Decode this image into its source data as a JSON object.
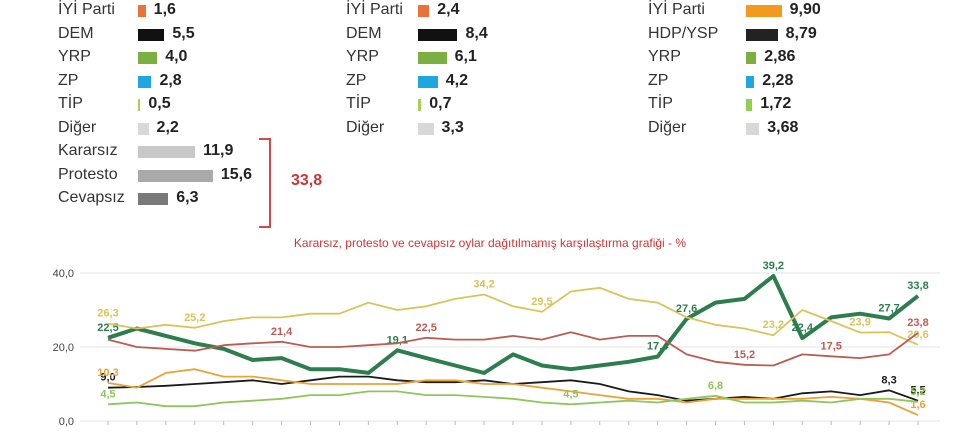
{
  "left_panel": {
    "rows": [
      {
        "label": "İYİ Parti",
        "value": "1,6",
        "color": "#e8743a"
      },
      {
        "label": "DEM",
        "value": "5,5",
        "color": "#111111"
      },
      {
        "label": "YRP",
        "value": "4,0",
        "color": "#7bb040"
      },
      {
        "label": "ZP",
        "value": "2,8",
        "color": "#1ea6e0"
      },
      {
        "label": "TİP",
        "value": "0,5",
        "color": "#a8cf56"
      },
      {
        "label": "Diğer",
        "value": "2,2",
        "color": "#d8d8d8"
      },
      {
        "label": "Kararsız",
        "value": "11,9",
        "color": "#c8c8c8"
      },
      {
        "label": "Protesto",
        "value": "15,6",
        "color": "#a9a9a9"
      },
      {
        "label": "Cevapsız",
        "value": "6,3",
        "color": "#7a7a7a"
      }
    ],
    "bracket_total": "33,8"
  },
  "middle_panel": {
    "rows": [
      {
        "label": "İYİ Parti",
        "value": "2,4",
        "color": "#e8743a"
      },
      {
        "label": "DEM",
        "value": "8,4",
        "color": "#111111"
      },
      {
        "label": "YRP",
        "value": "6,1",
        "color": "#7bb040"
      },
      {
        "label": "ZP",
        "value": "4,2",
        "color": "#1ea6e0"
      },
      {
        "label": "TİP",
        "value": "0,7",
        "color": "#a8cf56"
      },
      {
        "label": "Diğer",
        "value": "3,3",
        "color": "#d8d8d8"
      }
    ]
  },
  "right_panel": {
    "rows": [
      {
        "label": "İYİ Parti",
        "value": "9,90",
        "color": "#f39a1e"
      },
      {
        "label": "HDP/YSP",
        "value": "8,79",
        "color": "#222222"
      },
      {
        "label": "YRP",
        "value": "2,86",
        "color": "#7bb040"
      },
      {
        "label": "ZP",
        "value": "2,28",
        "color": "#1ea6e0"
      },
      {
        "label": "TİP",
        "value": "1,72",
        "color": "#8fd14f"
      },
      {
        "label": "Diğer",
        "value": "3,68",
        "color": "#d8d8d8"
      }
    ]
  },
  "chart_data": {
    "type": "line",
    "title": "Kararsız, protesto ve cevapsız oylar dağıtılmamış karşılaştırma grafiği - %",
    "ylim": [
      0,
      40
    ],
    "yticks": [
      "0,0",
      "20,0",
      "40,0"
    ],
    "grid": true,
    "series": [
      {
        "color": "#2e7d4f",
        "values": [
          22.5,
          25,
          23,
          21,
          19.5,
          16.5,
          17,
          14,
          14,
          13,
          19.1,
          17,
          15,
          13,
          18,
          15,
          14,
          15,
          16,
          17.4,
          27.6,
          32,
          33,
          39.2,
          22.4,
          28,
          29,
          27.7,
          33.8
        ],
        "labels": {
          "0": "22,5",
          "10": "19,1",
          "19": "17,4",
          "20": "27,6",
          "23": "39,2",
          "24": "22,4",
          "27": "27,7",
          "28": "33,8"
        }
      },
      {
        "color": "#d9c45a",
        "values": [
          26.3,
          25,
          26,
          25.2,
          27,
          28,
          28,
          29,
          29,
          32,
          30,
          31,
          33,
          34.2,
          31,
          29.5,
          35,
          36,
          33,
          32,
          28,
          26,
          25,
          23.2,
          30,
          27,
          23.9,
          24,
          20.6
        ],
        "labels": {
          "0": "26,3",
          "3": "25,2",
          "13": "34,2",
          "15": "29,5",
          "23": "23,2",
          "26": "23,9",
          "28": "20,6"
        }
      },
      {
        "color": "#b85d55",
        "values": [
          22,
          20,
          19.5,
          19,
          20.5,
          21,
          21.4,
          20,
          20,
          20.5,
          21,
          22.5,
          22,
          22,
          23,
          22,
          24,
          22,
          23,
          23,
          18,
          16,
          15.2,
          15,
          18,
          17.5,
          17,
          18,
          23.8
        ],
        "labels": {
          "6": "21,4",
          "11": "22,5",
          "22": "15,2",
          "25": "17,5",
          "28": "23,8"
        }
      },
      {
        "color": "#1a1a1a",
        "values": [
          9,
          9.2,
          9.5,
          10,
          10.5,
          11,
          10,
          11,
          12,
          12,
          11,
          10.5,
          10.5,
          11,
          10,
          10.5,
          11,
          10,
          8,
          7,
          5.5,
          6,
          6.5,
          6,
          7.5,
          8,
          7,
          8.3,
          5.5
        ],
        "labels": {
          "0": "9,0",
          "27": "8,3",
          "28": "5,5"
        }
      },
      {
        "color": "#e8a33a",
        "values": [
          10.3,
          9,
          13,
          14,
          12,
          12,
          11,
          10,
          10,
          10,
          10,
          11,
          11,
          10,
          10,
          9,
          8,
          7,
          6,
          6,
          5,
          6,
          6,
          6,
          6,
          6.5,
          6,
          5,
          1.6
        ],
        "labels": {
          "0": "10,3",
          "28": "1,6"
        }
      },
      {
        "color": "#8fc55a",
        "values": [
          4.5,
          5,
          4,
          4,
          5,
          5.5,
          6,
          7,
          7,
          8,
          8,
          7,
          7,
          6.5,
          6,
          5,
          4.5,
          5,
          5.5,
          5,
          6,
          6.8,
          5,
          5,
          5.5,
          5,
          6,
          6,
          5.2
        ],
        "labels": {
          "0": "4,5",
          "16": "4,5",
          "21": "6,8",
          "28": "5,2"
        }
      }
    ]
  }
}
